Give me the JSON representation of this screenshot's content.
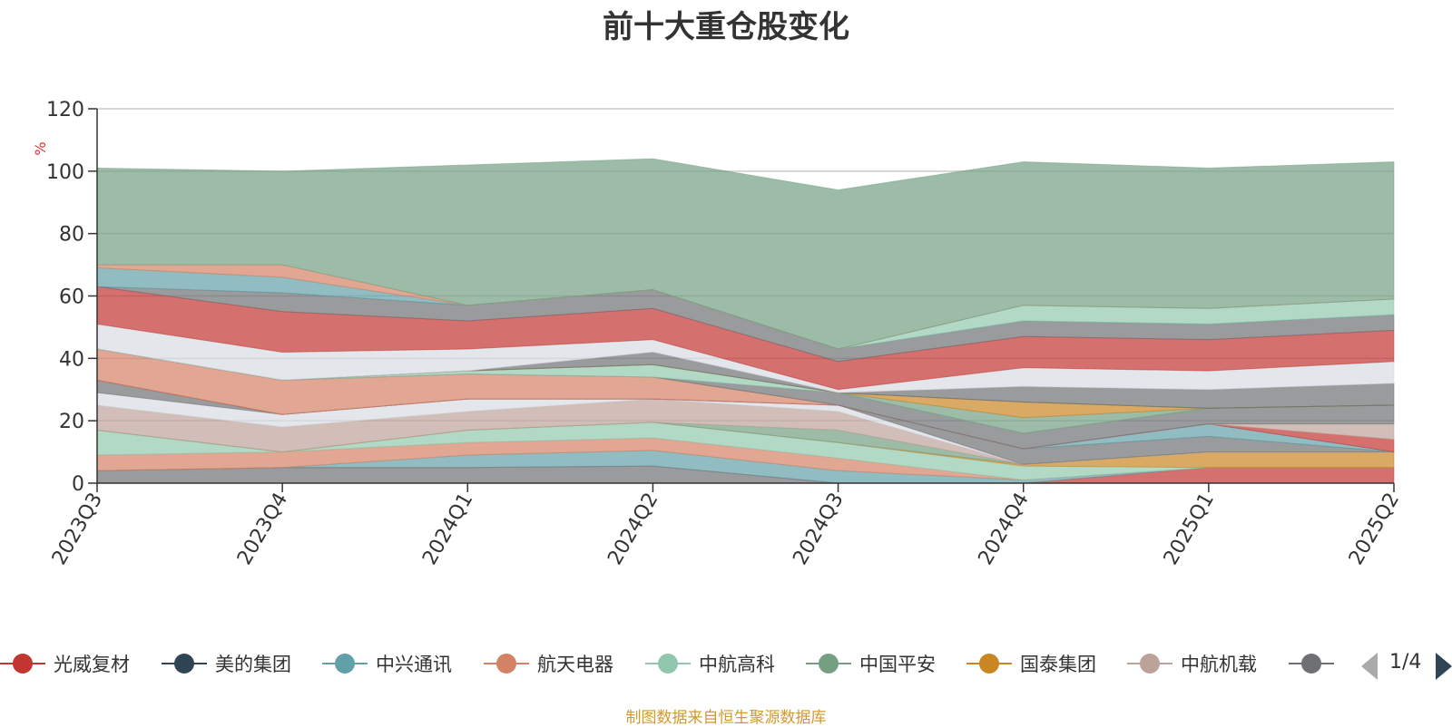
{
  "title": "前十大重仓股变化",
  "source_note": "制图数据来自恒生聚源数据库",
  "legend": {
    "page": "1/4",
    "items": [
      {
        "name": "光威复材",
        "color": "#c23531"
      },
      {
        "name": "美的集团",
        "color": "#2f4554"
      },
      {
        "name": "中兴通讯",
        "color": "#61a0a8"
      },
      {
        "name": "航天电器",
        "color": "#d48265"
      },
      {
        "name": "中航高科",
        "color": "#91c7ae"
      },
      {
        "name": "中国平安",
        "color": "#749f83"
      },
      {
        "name": "国泰集团",
        "color": "#ca8622"
      },
      {
        "name": "中航机载",
        "color": "#bda29a"
      },
      {
        "name": "",
        "color": "#6e7074"
      }
    ]
  },
  "chart_data": {
    "type": "area",
    "stacked": true,
    "title": "前十大重仓股变化",
    "ylabel": "%",
    "ylim": [
      0,
      120
    ],
    "yticks": [
      0,
      20,
      40,
      60,
      80,
      100,
      120
    ],
    "grid": true,
    "categories": [
      "2023Q3",
      "2023Q4",
      "2024Q1",
      "2024Q2",
      "2024Q3",
      "2024Q4",
      "2025Q1",
      "2025Q2"
    ],
    "layers": [
      {
        "color": "#6e7074",
        "values": [
          4,
          5,
          5,
          5.5,
          0,
          0,
          0,
          0
        ]
      },
      {
        "color": "#c23531",
        "values": [
          0,
          0,
          0,
          0,
          0,
          0,
          5,
          5
        ]
      },
      {
        "color": "#61a0a8",
        "values": [
          0,
          0,
          4,
          5,
          4,
          1,
          0,
          0
        ]
      },
      {
        "color": "#d48265",
        "values": [
          5,
          5,
          4,
          4,
          4,
          0,
          0,
          0
        ]
      },
      {
        "color": "#91c7ae",
        "values": [
          8,
          0,
          4,
          5,
          5,
          4.5,
          0,
          0
        ]
      },
      {
        "color": "#ca8622",
        "values": [
          0,
          0,
          0,
          0,
          0,
          0.5,
          5,
          5
        ]
      },
      {
        "color": "#749f83",
        "values": [
          0,
          0,
          0,
          0,
          4,
          0,
          0,
          0
        ]
      },
      {
        "color": "#bda29a",
        "values": [
          8,
          8,
          6,
          7.5,
          6,
          0,
          0,
          0
        ]
      },
      {
        "color": "#d7dce3",
        "values": [
          4,
          4,
          4,
          0,
          2,
          0,
          0,
          0
        ]
      },
      {
        "color": "#6e7074",
        "values": [
          4,
          0,
          0,
          0,
          0,
          5,
          5,
          0
        ]
      },
      {
        "color": "#61a0a8",
        "values": [
          0,
          0,
          0,
          0,
          0,
          0,
          4,
          0
        ]
      },
      {
        "color": "#c23531",
        "values": [
          0,
          0,
          0,
          0,
          0,
          0,
          0,
          4
        ]
      },
      {
        "color": "#d48265",
        "values": [
          10,
          11,
          8,
          7,
          0,
          0,
          0,
          0
        ]
      },
      {
        "color": "#bda29a",
        "values": [
          0,
          0,
          0,
          0,
          0,
          0,
          0,
          5
        ]
      },
      {
        "color": "#6e7074",
        "values": [
          0,
          0,
          0,
          0,
          4,
          5,
          5,
          6
        ]
      },
      {
        "color": "#91c7ae",
        "values": [
          0,
          0,
          1,
          4,
          0,
          0,
          0,
          0
        ]
      },
      {
        "color": "#749f83",
        "values": [
          0,
          0,
          0,
          0,
          0,
          5,
          0,
          0
        ]
      },
      {
        "color": "#ca8622",
        "values": [
          0,
          0,
          0,
          0,
          0,
          5,
          0,
          0
        ]
      },
      {
        "color": "#6e7074",
        "values": [
          0,
          0,
          0,
          4,
          0,
          0,
          0,
          0
        ]
      },
      {
        "color": "#6e7074",
        "values": [
          0,
          0,
          0,
          0,
          0,
          5,
          6,
          7
        ]
      },
      {
        "color": "#d7dce3",
        "values": [
          8,
          9,
          7,
          4,
          1,
          6,
          6,
          7
        ]
      },
      {
        "color": "#c23531",
        "values": [
          12,
          13,
          9,
          10,
          9,
          10,
          10,
          10
        ]
      },
      {
        "color": "#6e7074",
        "values": [
          0,
          6,
          5,
          6,
          4,
          5,
          5,
          5
        ]
      },
      {
        "color": "#61a0a8",
        "values": [
          6,
          5,
          0,
          0,
          0,
          0,
          0,
          0
        ]
      },
      {
        "color": "#91c7ae",
        "values": [
          0,
          0,
          0,
          0,
          0,
          5,
          5,
          5
        ]
      },
      {
        "color": "#d48265",
        "values": [
          1,
          4,
          0,
          0,
          0,
          0,
          0,
          0
        ]
      },
      {
        "color": "#749f83",
        "values": [
          31,
          30,
          45,
          42,
          51,
          46,
          45,
          44
        ]
      }
    ]
  }
}
